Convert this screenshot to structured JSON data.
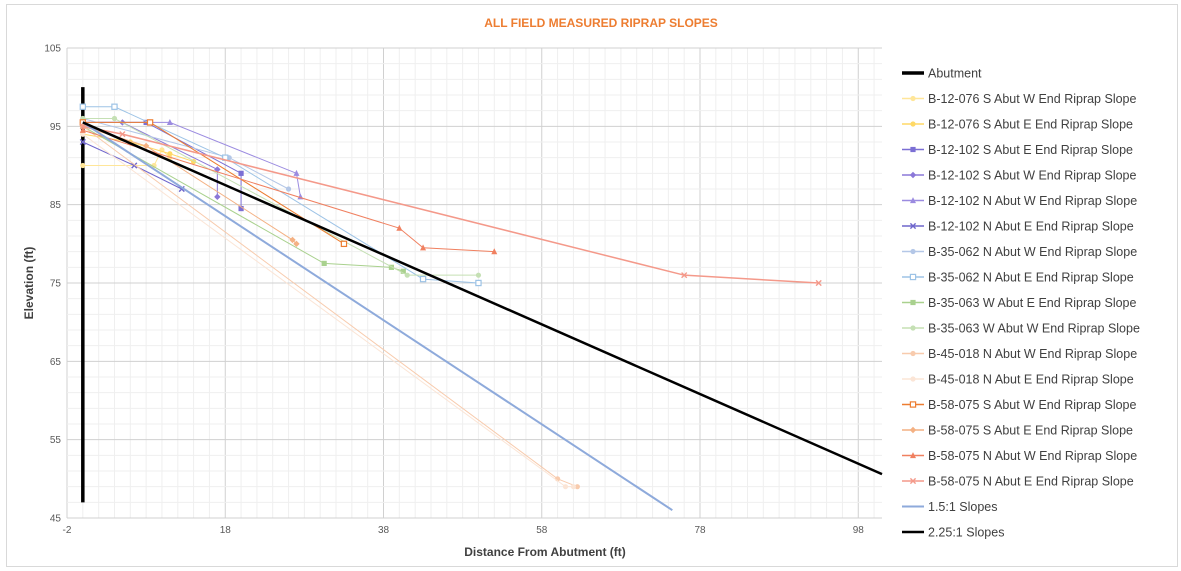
{
  "chart_data": {
    "type": "scatter",
    "title": "ALL FIELD MEASURED RIPRAP SLOPES",
    "xlabel": "Distance From Abutment (ft)",
    "ylabel": "Elevation (ft)",
    "xlim": [
      -2,
      101
    ],
    "ylim": [
      45,
      105
    ],
    "x_ticks": [
      "-2",
      "18",
      "38",
      "58",
      "78",
      "98"
    ],
    "x_tick_values": [
      -2,
      18,
      38,
      58,
      78,
      98
    ],
    "y_ticks": [
      "45",
      "55",
      "65",
      "75",
      "85",
      "95",
      "105"
    ],
    "y_tick_values": [
      45,
      55,
      65,
      75,
      85,
      95,
      105
    ],
    "grid": true,
    "legend_position": "right",
    "series": [
      {
        "name": "Abutment",
        "color": "#000000",
        "marker": "none",
        "width": 3.5,
        "points": [
          [
            0,
            47
          ],
          [
            0,
            100
          ]
        ]
      },
      {
        "name": "B-12-076 S Abut W End Riprap Slope",
        "color": "#ffe699",
        "marker": "circle",
        "width": 1,
        "points": [
          [
            0,
            90
          ],
          [
            9,
            90
          ],
          [
            10,
            92
          ],
          [
            11,
            91
          ]
        ]
      },
      {
        "name": "B-12-076 S Abut E End Riprap Slope",
        "color": "#ffd966",
        "marker": "circle",
        "width": 1,
        "points": [
          [
            0,
            94
          ],
          [
            6,
            93
          ],
          [
            11,
            91.5
          ],
          [
            14,
            90.5
          ]
        ]
      },
      {
        "name": "B-12-102 S Abut E End Riprap Slope",
        "color": "#7b6fd4",
        "marker": "square",
        "width": 1,
        "points": [
          [
            0,
            95.5
          ],
          [
            8,
            95.5
          ],
          [
            20,
            89
          ],
          [
            20,
            84.5
          ]
        ]
      },
      {
        "name": "B-12-102 S Abut W End Riprap Slope",
        "color": "#8b78d8",
        "marker": "diamond",
        "width": 1,
        "points": [
          [
            0,
            95.5
          ],
          [
            5,
            95.5
          ],
          [
            17,
            89.5
          ],
          [
            17,
            86
          ]
        ]
      },
      {
        "name": "B-12-102 N Abut W End Riprap Slope",
        "color": "#9b8be0",
        "marker": "triangle",
        "width": 1,
        "points": [
          [
            0,
            95.5
          ],
          [
            11,
            95.5
          ],
          [
            27,
            89
          ],
          [
            27.5,
            86
          ]
        ]
      },
      {
        "name": "B-12-102 N Abut E End Riprap Slope",
        "color": "#6f66cc",
        "marker": "x",
        "width": 1,
        "points": [
          [
            0,
            93
          ],
          [
            6.5,
            90
          ],
          [
            12.5,
            87
          ]
        ]
      },
      {
        "name": "B-35-062 N Abut W End Riprap Slope",
        "color": "#b4c7e7",
        "marker": "circle",
        "width": 1,
        "points": [
          [
            0,
            96
          ],
          [
            18.5,
            91
          ],
          [
            26,
            87
          ]
        ]
      },
      {
        "name": "B-35-062 N Abut E End Riprap Slope",
        "color": "#9dc3e6",
        "marker": "square-open",
        "width": 1,
        "points": [
          [
            0,
            97.5
          ],
          [
            4,
            97.5
          ],
          [
            18,
            91
          ],
          [
            43,
            75.5
          ],
          [
            50,
            75
          ]
        ]
      },
      {
        "name": "B-35-063 W Abut E End Riprap Slope",
        "color": "#a9d18e",
        "marker": "square",
        "width": 1,
        "points": [
          [
            0,
            95
          ],
          [
            30.5,
            77.5
          ],
          [
            39,
            77
          ],
          [
            40.5,
            76.5
          ]
        ]
      },
      {
        "name": "B-35-063 W Abut W End Riprap Slope",
        "color": "#c5e0b4",
        "marker": "circle",
        "width": 1,
        "points": [
          [
            0,
            96
          ],
          [
            4,
            96
          ],
          [
            41,
            76
          ],
          [
            50,
            76
          ]
        ]
      },
      {
        "name": "B-45-018 N Abut W End Riprap Slope",
        "color": "#f8cbad",
        "marker": "circle",
        "width": 1,
        "points": [
          [
            0,
            95
          ],
          [
            60,
            50
          ],
          [
            62.5,
            49
          ]
        ]
      },
      {
        "name": "B-45-018 N Abut E End Riprap Slope",
        "color": "#fbe5d6",
        "marker": "circle",
        "width": 1,
        "points": [
          [
            0,
            94
          ],
          [
            61,
            49
          ],
          [
            62,
            49
          ]
        ]
      },
      {
        "name": "B-58-075 S Abut W End Riprap Slope",
        "color": "#ed7d31",
        "marker": "square-open",
        "width": 1,
        "points": [
          [
            0,
            95.5
          ],
          [
            8.5,
            95.5
          ],
          [
            33,
            80
          ]
        ]
      },
      {
        "name": "B-58-075 S Abut E End Riprap Slope",
        "color": "#f4b183",
        "marker": "diamond",
        "width": 1,
        "points": [
          [
            0,
            95
          ],
          [
            8,
            92.5
          ],
          [
            26.5,
            80.5
          ],
          [
            27,
            80
          ]
        ]
      },
      {
        "name": "B-58-075 N Abut W End Riprap Slope",
        "color": "#f08060",
        "marker": "triangle",
        "width": 1,
        "points": [
          [
            0,
            94.5
          ],
          [
            40,
            82
          ],
          [
            43,
            79.5
          ],
          [
            52,
            79
          ]
        ]
      },
      {
        "name": "B-58-075 N Abut E End Riprap Slope",
        "color": "#f4998a",
        "marker": "x",
        "width": 1.5,
        "points": [
          [
            0,
            95
          ],
          [
            5,
            94
          ],
          [
            76,
            76
          ],
          [
            93,
            75
          ]
        ]
      },
      {
        "name": "1.5:1 Slopes",
        "color": "#8eaadb",
        "marker": "none",
        "width": 2,
        "points": [
          [
            0,
            95.5
          ],
          [
            74.5,
            46
          ]
        ]
      },
      {
        "name": "2.25:1 Slopes",
        "color": "#000000",
        "marker": "none",
        "width": 2.5,
        "points": [
          [
            0,
            95.5
          ],
          [
            101,
            50.6
          ]
        ]
      }
    ]
  }
}
